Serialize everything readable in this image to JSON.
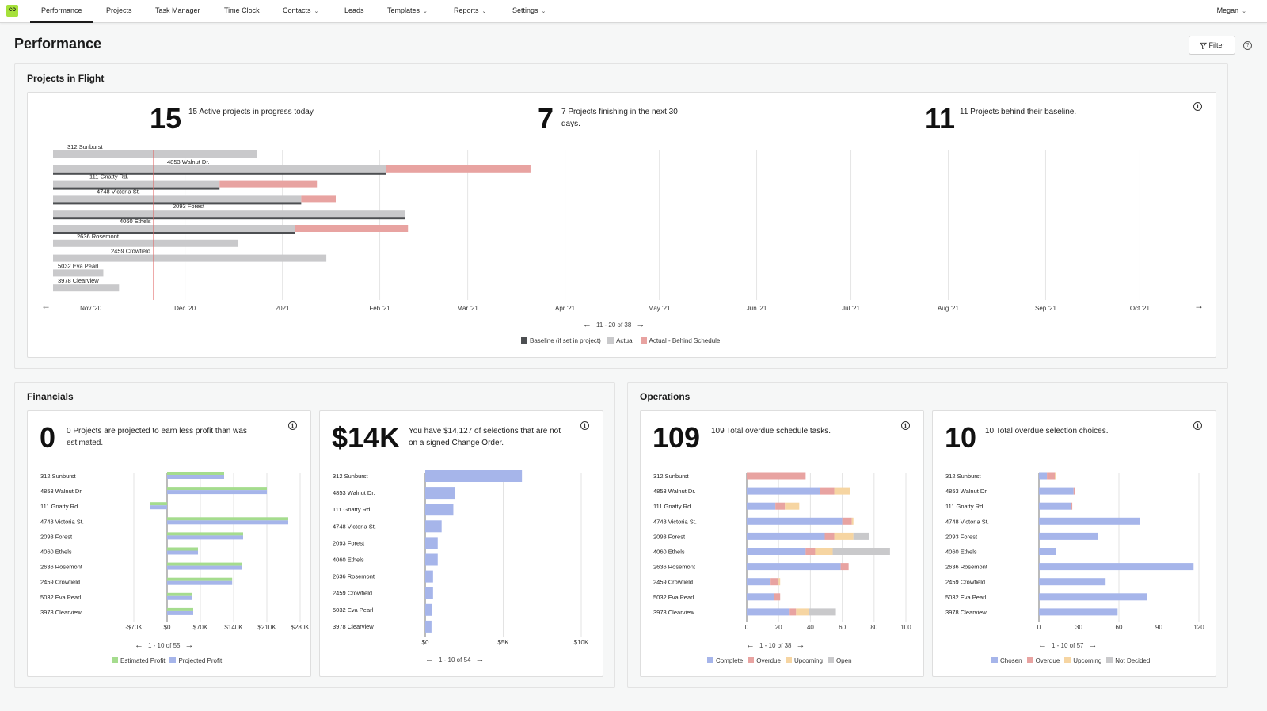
{
  "nav": {
    "logo": "CO",
    "items": [
      {
        "label": "Performance",
        "dropdown": false
      },
      {
        "label": "Projects",
        "dropdown": false
      },
      {
        "label": "Task Manager",
        "dropdown": false
      },
      {
        "label": "Time Clock",
        "dropdown": false
      },
      {
        "label": "Contacts",
        "dropdown": true
      },
      {
        "label": "Leads",
        "dropdown": false
      },
      {
        "label": "Templates",
        "dropdown": true
      },
      {
        "label": "Reports",
        "dropdown": true
      },
      {
        "label": "Settings",
        "dropdown": true
      }
    ],
    "user": "Megan"
  },
  "page": {
    "title": "Performance",
    "filter_label": "Filter"
  },
  "flight": {
    "title": "Projects in Flight",
    "stats": [
      {
        "num": "15",
        "desc": "15 Active projects in progress today."
      },
      {
        "num": "7",
        "desc": "7 Projects finishing in the next 30 days."
      },
      {
        "num": "11",
        "desc": "11 Projects behind their baseline."
      }
    ],
    "pager": "11 - 20 of 38",
    "legend": [
      "Baseline (if set in project)",
      "Actual",
      "Actual - Behind Schedule"
    ],
    "colors": {
      "baseline": "#4d4f52",
      "actual": "#c9c9cb",
      "behind": "#e8a3a1",
      "today": "#e06a68"
    }
  },
  "financials": {
    "title": "Financials",
    "profit": {
      "num": "0",
      "desc": "0 Projects are projected to earn less profit than was estimated.",
      "pager": "1 - 10 of 55"
    },
    "selections": {
      "num": "$14K",
      "desc": "You have $14,127 of selections that are not on a signed Change Order.",
      "pager": "1 - 10 of 54"
    }
  },
  "operations": {
    "title": "Operations",
    "schedule": {
      "num": "109",
      "desc": "109 Total overdue schedule tasks.",
      "pager": "1 - 10 of 38"
    },
    "choices": {
      "num": "10",
      "desc": "10 Total overdue selection choices.",
      "pager": "1 - 10 of 57"
    }
  },
  "chart_data": [
    {
      "type": "gantt",
      "name": "Projects in Flight",
      "x_ticks": [
        "Nov '20",
        "Dec '20",
        "2021",
        "Feb '21",
        "Mar '21",
        "Apr '21",
        "May '21",
        "Jun '21",
        "Jul '21",
        "Aug '21",
        "Sep '21",
        "Oct '21"
      ],
      "rows": [
        {
          "label": "312 Sunburst",
          "actual": [
            "2020-10-20",
            "2020-12-24"
          ],
          "baseline": null,
          "behind": null
        },
        {
          "label": "4853 Walnut Dr.",
          "actual": [
            "2020-10-20",
            "2021-02-03"
          ],
          "baseline": [
            "2020-10-20",
            "2021-02-03"
          ],
          "behind": [
            "2021-02-03",
            "2021-03-21"
          ]
        },
        {
          "label": "111 Gnatty Rd.",
          "actual": [
            "2020-10-20",
            "2020-12-12"
          ],
          "baseline": [
            "2020-10-20",
            "2020-12-12"
          ],
          "behind": [
            "2020-12-12",
            "2021-01-12"
          ]
        },
        {
          "label": "4748 Victoria St.",
          "actual": [
            "2020-10-20",
            "2021-01-07"
          ],
          "baseline": [
            "2020-10-20",
            "2021-01-07"
          ],
          "behind": [
            "2021-01-07",
            "2021-01-18"
          ]
        },
        {
          "label": "2093 Forest",
          "actual": [
            "2020-10-20",
            "2021-02-09"
          ],
          "baseline": [
            "2020-10-20",
            "2021-02-09"
          ],
          "behind": null
        },
        {
          "label": "4060 Ethels",
          "actual": [
            "2020-10-20",
            "2021-01-05"
          ],
          "baseline": [
            "2020-10-20",
            "2021-01-05"
          ],
          "behind": [
            "2021-01-05",
            "2021-02-10"
          ]
        },
        {
          "label": "2636 Rosemont",
          "actual": [
            "2020-10-20",
            "2020-12-18"
          ],
          "baseline": null,
          "behind": null
        },
        {
          "label": "2459 Crowfield",
          "actual": [
            "2020-10-20",
            "2021-01-15"
          ],
          "baseline": null,
          "behind": null
        },
        {
          "label": "5032 Eva Pearl",
          "actual": [
            "2020-10-20",
            "2020-11-05"
          ],
          "baseline": null,
          "behind": null
        },
        {
          "label": "3978 Clearview",
          "actual": [
            "2020-10-20",
            "2020-11-10"
          ],
          "baseline": null,
          "behind": null
        }
      ],
      "today": "2020-11-21"
    },
    {
      "type": "bar",
      "orientation": "horizontal",
      "categories": [
        "312 Sunburst",
        "4853 Walnut Dr.",
        "111 Gnatty Rd.",
        "4748 Victoria St.",
        "2093 Forest",
        "4060 Ethels",
        "2636 Rosemont",
        "2459 Crowfield",
        "5032 Eva Pearl",
        "3978 Clearview"
      ],
      "series": [
        {
          "name": "Estimated Profit",
          "color": "#a5dc8e",
          "values": [
            120000,
            210000,
            -35000,
            255000,
            160000,
            65000,
            158000,
            137000,
            52000,
            55000
          ]
        },
        {
          "name": "Projected Profit",
          "color": "#a6b5ea",
          "values": [
            120000,
            210000,
            -35000,
            255000,
            160000,
            65000,
            158000,
            137000,
            52000,
            55000
          ]
        }
      ],
      "x_ticks": [
        "-$70K",
        "$0",
        "$70K",
        "$140K",
        "$210K",
        "$280K"
      ],
      "xlim": [
        -70000,
        280000
      ]
    },
    {
      "type": "bar",
      "orientation": "horizontal",
      "categories": [
        "312 Sunburst",
        "4853 Walnut Dr.",
        "111 Gnatty Rd.",
        "4748 Victoria St.",
        "2093 Forest",
        "4060 Ethels",
        "2636 Rosemont",
        "2459 Crowfield",
        "5032 Eva Pearl",
        "3978 Clearview"
      ],
      "series": [
        {
          "name": "",
          "color": "#a6b5ea",
          "values": [
            6200,
            1900,
            1800,
            1050,
            800,
            800,
            500,
            500,
            450,
            400
          ]
        }
      ],
      "x_ticks": [
        "$0",
        "$5K",
        "$10K"
      ],
      "xlim": [
        0,
        10000
      ]
    },
    {
      "type": "bar",
      "orientation": "horizontal",
      "stacked": true,
      "categories": [
        "312 Sunburst",
        "4853 Walnut Dr.",
        "111 Gnatty Rd.",
        "4748 Victoria St.",
        "2093 Forest",
        "4060 Ethels",
        "2636 Rosemont",
        "2459 Crowfield",
        "5032 Eva Pearl",
        "3978 Clearview"
      ],
      "series": [
        {
          "name": "Complete",
          "color": "#a6b5ea",
          "values": [
            0,
            46,
            18,
            60,
            49,
            37,
            59,
            15,
            17,
            27
          ]
        },
        {
          "name": "Overdue",
          "color": "#e8a3a1",
          "values": [
            37,
            9,
            6,
            6,
            6,
            6,
            5,
            5,
            4,
            4
          ]
        },
        {
          "name": "Upcoming",
          "color": "#f6d5a2",
          "values": [
            0,
            10,
            9,
            1,
            12,
            11,
            0,
            1,
            0,
            8
          ]
        },
        {
          "name": "Open",
          "color": "#c9c9cb",
          "values": [
            0,
            0,
            0,
            0,
            10,
            36,
            0,
            0,
            0,
            17
          ]
        }
      ],
      "x_ticks": [
        "0",
        "20",
        "40",
        "60",
        "80",
        "100"
      ],
      "xlim": [
        0,
        100
      ]
    },
    {
      "type": "bar",
      "orientation": "horizontal",
      "stacked": true,
      "categories": [
        "312 Sunburst",
        "4853 Walnut Dr.",
        "111 Gnatty Rd.",
        "4748 Victoria St.",
        "2093 Forest",
        "4060 Ethels",
        "2636 Rosemont",
        "2459 Crowfield",
        "5032 Eva Pearl",
        "3978 Clearview"
      ],
      "series": [
        {
          "name": "Chosen",
          "color": "#a6b5ea",
          "values": [
            6,
            26,
            24,
            76,
            44,
            13,
            116,
            50,
            81,
            59
          ]
        },
        {
          "name": "Overdue",
          "color": "#e8a3a1",
          "values": [
            6,
            1,
            1,
            0,
            0,
            0,
            0,
            0,
            0,
            0
          ]
        },
        {
          "name": "Upcoming",
          "color": "#f6d5a2",
          "values": [
            1,
            0,
            0,
            0,
            0,
            0,
            0,
            0,
            0,
            0
          ]
        },
        {
          "name": "Not Decided",
          "color": "#c9c9cb",
          "values": [
            0,
            0,
            0,
            0,
            0,
            0,
            0,
            0,
            0,
            0
          ]
        }
      ],
      "x_ticks": [
        "0",
        "30",
        "60",
        "90",
        "120"
      ],
      "xlim": [
        0,
        120
      ]
    }
  ]
}
